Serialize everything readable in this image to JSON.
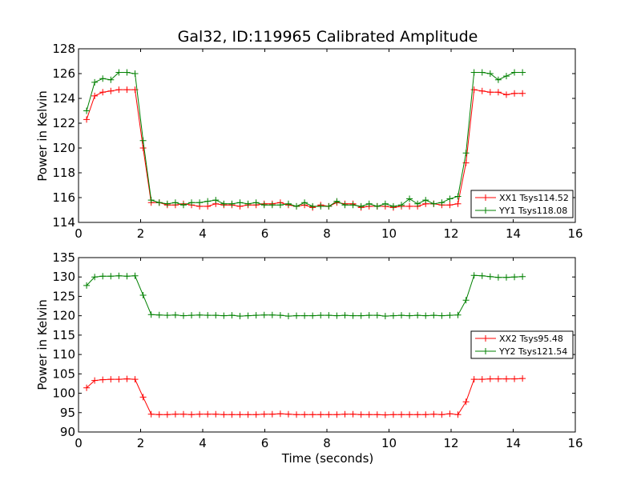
{
  "chart_data": [
    {
      "type": "line",
      "title": "Gal32, ID:119965 Calibrated Amplitude",
      "xlabel": "",
      "ylabel": "Power in Kelvin",
      "xlim": [
        0,
        16
      ],
      "ylim": [
        114,
        128
      ],
      "xticks": [
        0,
        2,
        4,
        6,
        8,
        10,
        12,
        14,
        16
      ],
      "yticks": [
        114,
        116,
        118,
        120,
        122,
        124,
        126,
        128
      ],
      "grid": false,
      "legend_position": "lower-right",
      "x": [
        0.26,
        0.52,
        0.78,
        1.04,
        1.3,
        1.56,
        1.82,
        2.08,
        2.34,
        2.6,
        2.86,
        3.12,
        3.38,
        3.64,
        3.9,
        4.16,
        4.42,
        4.68,
        4.94,
        5.2,
        5.46,
        5.72,
        5.98,
        6.24,
        6.5,
        6.76,
        7.02,
        7.28,
        7.54,
        7.8,
        8.06,
        8.32,
        8.58,
        8.84,
        9.1,
        9.36,
        9.62,
        9.88,
        10.14,
        10.4,
        10.66,
        10.92,
        11.18,
        11.44,
        11.7,
        11.96,
        12.22,
        12.48,
        12.74,
        13.0,
        13.26,
        13.52,
        13.78,
        14.04,
        14.3
      ],
      "series": [
        {
          "name": "XX1 Tsys114.52",
          "color": "#ff0000",
          "values": [
            122.3,
            124.2,
            124.5,
            124.6,
            124.7,
            124.7,
            124.7,
            120.0,
            115.6,
            115.6,
            115.4,
            115.4,
            115.5,
            115.4,
            115.3,
            115.3,
            115.5,
            115.4,
            115.4,
            115.3,
            115.4,
            115.4,
            115.5,
            115.5,
            115.6,
            115.4,
            115.3,
            115.4,
            115.2,
            115.4,
            115.3,
            115.6,
            115.5,
            115.5,
            115.2,
            115.3,
            115.3,
            115.3,
            115.2,
            115.3,
            115.3,
            115.3,
            115.5,
            115.5,
            115.4,
            115.4,
            115.5,
            118.8,
            124.7,
            124.6,
            124.5,
            124.5,
            124.3,
            124.4,
            124.4
          ]
        },
        {
          "name": "YY1 Tsys118.08",
          "color": "#008000",
          "values": [
            123.0,
            125.3,
            125.6,
            125.5,
            126.1,
            126.1,
            126.0,
            120.6,
            115.8,
            115.6,
            115.5,
            115.6,
            115.4,
            115.6,
            115.6,
            115.7,
            115.8,
            115.5,
            115.5,
            115.6,
            115.5,
            115.6,
            115.4,
            115.4,
            115.4,
            115.5,
            115.3,
            115.6,
            115.3,
            115.3,
            115.3,
            115.7,
            115.4,
            115.4,
            115.3,
            115.5,
            115.3,
            115.5,
            115.3,
            115.4,
            115.9,
            115.5,
            115.8,
            115.5,
            115.6,
            115.9,
            116.1,
            119.6,
            126.1,
            126.1,
            126.0,
            125.5,
            125.8,
            126.1,
            126.1
          ]
        }
      ]
    },
    {
      "type": "line",
      "title": "",
      "xlabel": "Time (seconds)",
      "ylabel": "Power in Kelvin",
      "xlim": [
        0,
        16
      ],
      "ylim": [
        90,
        135
      ],
      "xticks": [
        0,
        2,
        4,
        6,
        8,
        10,
        12,
        14,
        16
      ],
      "yticks": [
        90,
        95,
        100,
        105,
        110,
        115,
        120,
        125,
        130,
        135
      ],
      "grid": false,
      "legend_position": "center-right",
      "x": [
        0.26,
        0.52,
        0.78,
        1.04,
        1.3,
        1.56,
        1.82,
        2.08,
        2.34,
        2.6,
        2.86,
        3.12,
        3.38,
        3.64,
        3.9,
        4.16,
        4.42,
        4.68,
        4.94,
        5.2,
        5.46,
        5.72,
        5.98,
        6.24,
        6.5,
        6.76,
        7.02,
        7.28,
        7.54,
        7.8,
        8.06,
        8.32,
        8.58,
        8.84,
        9.1,
        9.36,
        9.62,
        9.88,
        10.14,
        10.4,
        10.66,
        10.92,
        11.18,
        11.44,
        11.7,
        11.96,
        12.22,
        12.48,
        12.74,
        13.0,
        13.26,
        13.52,
        13.78,
        14.04,
        14.3
      ],
      "series": [
        {
          "name": "XX2 Tsys95.48",
          "color": "#ff0000",
          "values": [
            101.4,
            103.3,
            103.5,
            103.6,
            103.6,
            103.7,
            103.6,
            99.0,
            94.6,
            94.5,
            94.5,
            94.6,
            94.6,
            94.5,
            94.6,
            94.6,
            94.6,
            94.5,
            94.5,
            94.5,
            94.5,
            94.5,
            94.6,
            94.6,
            94.7,
            94.6,
            94.5,
            94.5,
            94.5,
            94.5,
            94.5,
            94.5,
            94.6,
            94.6,
            94.5,
            94.5,
            94.5,
            94.4,
            94.5,
            94.5,
            94.5,
            94.5,
            94.5,
            94.6,
            94.5,
            94.7,
            94.5,
            97.8,
            103.6,
            103.6,
            103.7,
            103.7,
            103.7,
            103.7,
            103.8
          ]
        },
        {
          "name": "YY2 Tsys121.54",
          "color": "#008000",
          "values": [
            127.8,
            130.0,
            130.2,
            130.2,
            130.3,
            130.2,
            130.3,
            125.3,
            120.3,
            120.2,
            120.1,
            120.2,
            120.0,
            120.1,
            120.2,
            120.1,
            120.1,
            120.0,
            120.1,
            119.9,
            120.0,
            120.1,
            120.2,
            120.2,
            120.1,
            119.9,
            120.0,
            120.0,
            120.0,
            120.1,
            120.1,
            120.0,
            120.1,
            120.0,
            120.0,
            120.1,
            120.1,
            119.9,
            120.0,
            120.1,
            120.0,
            120.1,
            120.0,
            120.1,
            120.0,
            120.1,
            120.2,
            124.0,
            130.4,
            130.3,
            130.1,
            129.9,
            129.9,
            130.0,
            130.1
          ]
        }
      ]
    }
  ]
}
